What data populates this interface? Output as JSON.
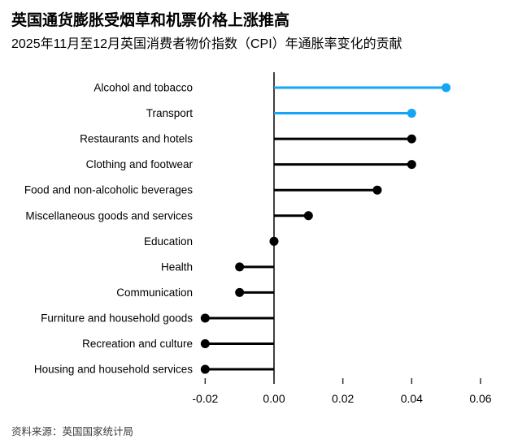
{
  "chart_data": {
    "type": "bar",
    "variant": "horizontal-lollipop",
    "title": "英国通货膨胀受烟草和机票价格上涨推高",
    "subtitle": "2025年11月至12月英国消费者物价指数（CPI）年通胀率变化的贡献",
    "source": "资料来源：英国国家统计局",
    "categories": [
      "Alcohol and tobacco",
      "Transport",
      "Restaurants and hotels",
      "Clothing and footwear",
      "Food and non-alcoholic beverages",
      "Miscellaneous goods and services",
      "Education",
      "Health",
      "Communication",
      "Furniture and household goods",
      "Recreation and culture",
      "Housing and household services"
    ],
    "values": [
      0.05,
      0.04,
      0.04,
      0.04,
      0.03,
      0.01,
      0.0,
      -0.01,
      -0.01,
      -0.02,
      -0.02,
      -0.02
    ],
    "highlighted_categories": [
      "Alcohol and tobacco",
      "Transport"
    ],
    "colors": {
      "highlight": "#14A5F5",
      "default": "#000000",
      "axis": "#000000",
      "tick": "#333333"
    },
    "x_ticks": [
      -0.02,
      0,
      0.02,
      0.04,
      0.06
    ],
    "x_tick_labels": [
      "-0.02",
      "0.00",
      "0.02",
      "0.04",
      "0.06"
    ],
    "xlim": [
      -0.025,
      0.068
    ],
    "xlabel": "",
    "ylabel": "",
    "grid": false,
    "legend": "none"
  }
}
